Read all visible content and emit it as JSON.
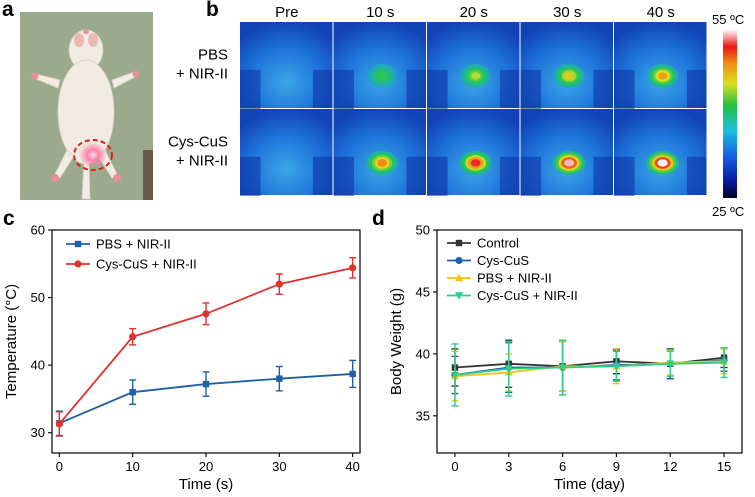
{
  "panel_a": {
    "label": "a"
  },
  "panel_b": {
    "label": "b",
    "time_headers": [
      "Pre",
      "10 s",
      "20 s",
      "30 s",
      "40 s"
    ],
    "rows": [
      [
        "PBS",
        "+ NIR-II"
      ],
      [
        "Cys-CuS",
        "+ NIR-II"
      ]
    ],
    "scale_max": "55 ºC",
    "scale_min": "25 ºC",
    "hotspot_levels": [
      [
        0,
        0.35,
        0.5,
        0.6,
        0.68
      ],
      [
        0,
        0.72,
        0.86,
        0.96,
        1.0
      ]
    ]
  },
  "chart_data": [
    {
      "panel": "c",
      "type": "line",
      "xlabel": "Time (s)",
      "ylabel": "Temperature (°C)",
      "x": [
        0,
        10,
        20,
        30,
        40
      ],
      "xlim": [
        -1,
        41
      ],
      "ylim": [
        27,
        60
      ],
      "xticks": [
        "0",
        "10",
        "20",
        "30",
        "40"
      ],
      "yticks": [
        "30",
        "40",
        "50",
        "60"
      ],
      "series": [
        {
          "name": "PBS + NIR-II",
          "color": "#1f5fa6",
          "marker": "square",
          "values": [
            31.4,
            36.0,
            37.2,
            38.0,
            38.7
          ],
          "err": [
            1.8,
            1.8,
            1.8,
            1.8,
            2.0
          ]
        },
        {
          "name": "Cys-CuS + NIR-II",
          "color": "#e0322e",
          "marker": "circle",
          "values": [
            31.3,
            44.2,
            47.6,
            52.0,
            54.4
          ],
          "err": [
            1.8,
            1.2,
            1.6,
            1.5,
            1.5
          ]
        }
      ]
    },
    {
      "panel": "d",
      "type": "line",
      "xlabel": "Time (day)",
      "ylabel": "Body Weight (g)",
      "x": [
        0,
        3,
        6,
        9,
        12,
        15
      ],
      "xlim": [
        -1,
        16
      ],
      "ylim": [
        32,
        50
      ],
      "xticks": [
        "0",
        "3",
        "6",
        "9",
        "12",
        "15"
      ],
      "yticks": [
        "35",
        "40",
        "45",
        "50"
      ],
      "series": [
        {
          "name": "Control",
          "color": "#333333",
          "marker": "square",
          "values": [
            38.9,
            39.2,
            39.0,
            39.4,
            39.2,
            39.7
          ],
          "err": [
            1.5,
            1.9,
            2.0,
            1.0,
            1.2,
            0.8
          ]
        },
        {
          "name": "Cys-CuS",
          "color": "#1f5fa6",
          "marker": "circle",
          "values": [
            38.3,
            38.9,
            38.9,
            39.1,
            39.2,
            39.5
          ],
          "err": [
            1.5,
            2.0,
            2.2,
            1.2,
            1.2,
            0.9
          ]
        },
        {
          "name": "PBS + NIR-II",
          "color": "#f2c20f",
          "marker": "triangle-up",
          "values": [
            38.2,
            38.5,
            39.0,
            39.0,
            39.3,
            39.4
          ],
          "err": [
            2.0,
            1.5,
            2.0,
            1.4,
            1.0,
            1.0
          ]
        },
        {
          "name": "Cys-CuS + NIR-II",
          "color": "#2ecc8a",
          "marker": "triangle-down",
          "values": [
            38.3,
            38.8,
            38.9,
            39.0,
            39.2,
            39.3
          ],
          "err": [
            2.5,
            2.2,
            2.2,
            1.2,
            1.0,
            1.2
          ]
        }
      ]
    }
  ]
}
